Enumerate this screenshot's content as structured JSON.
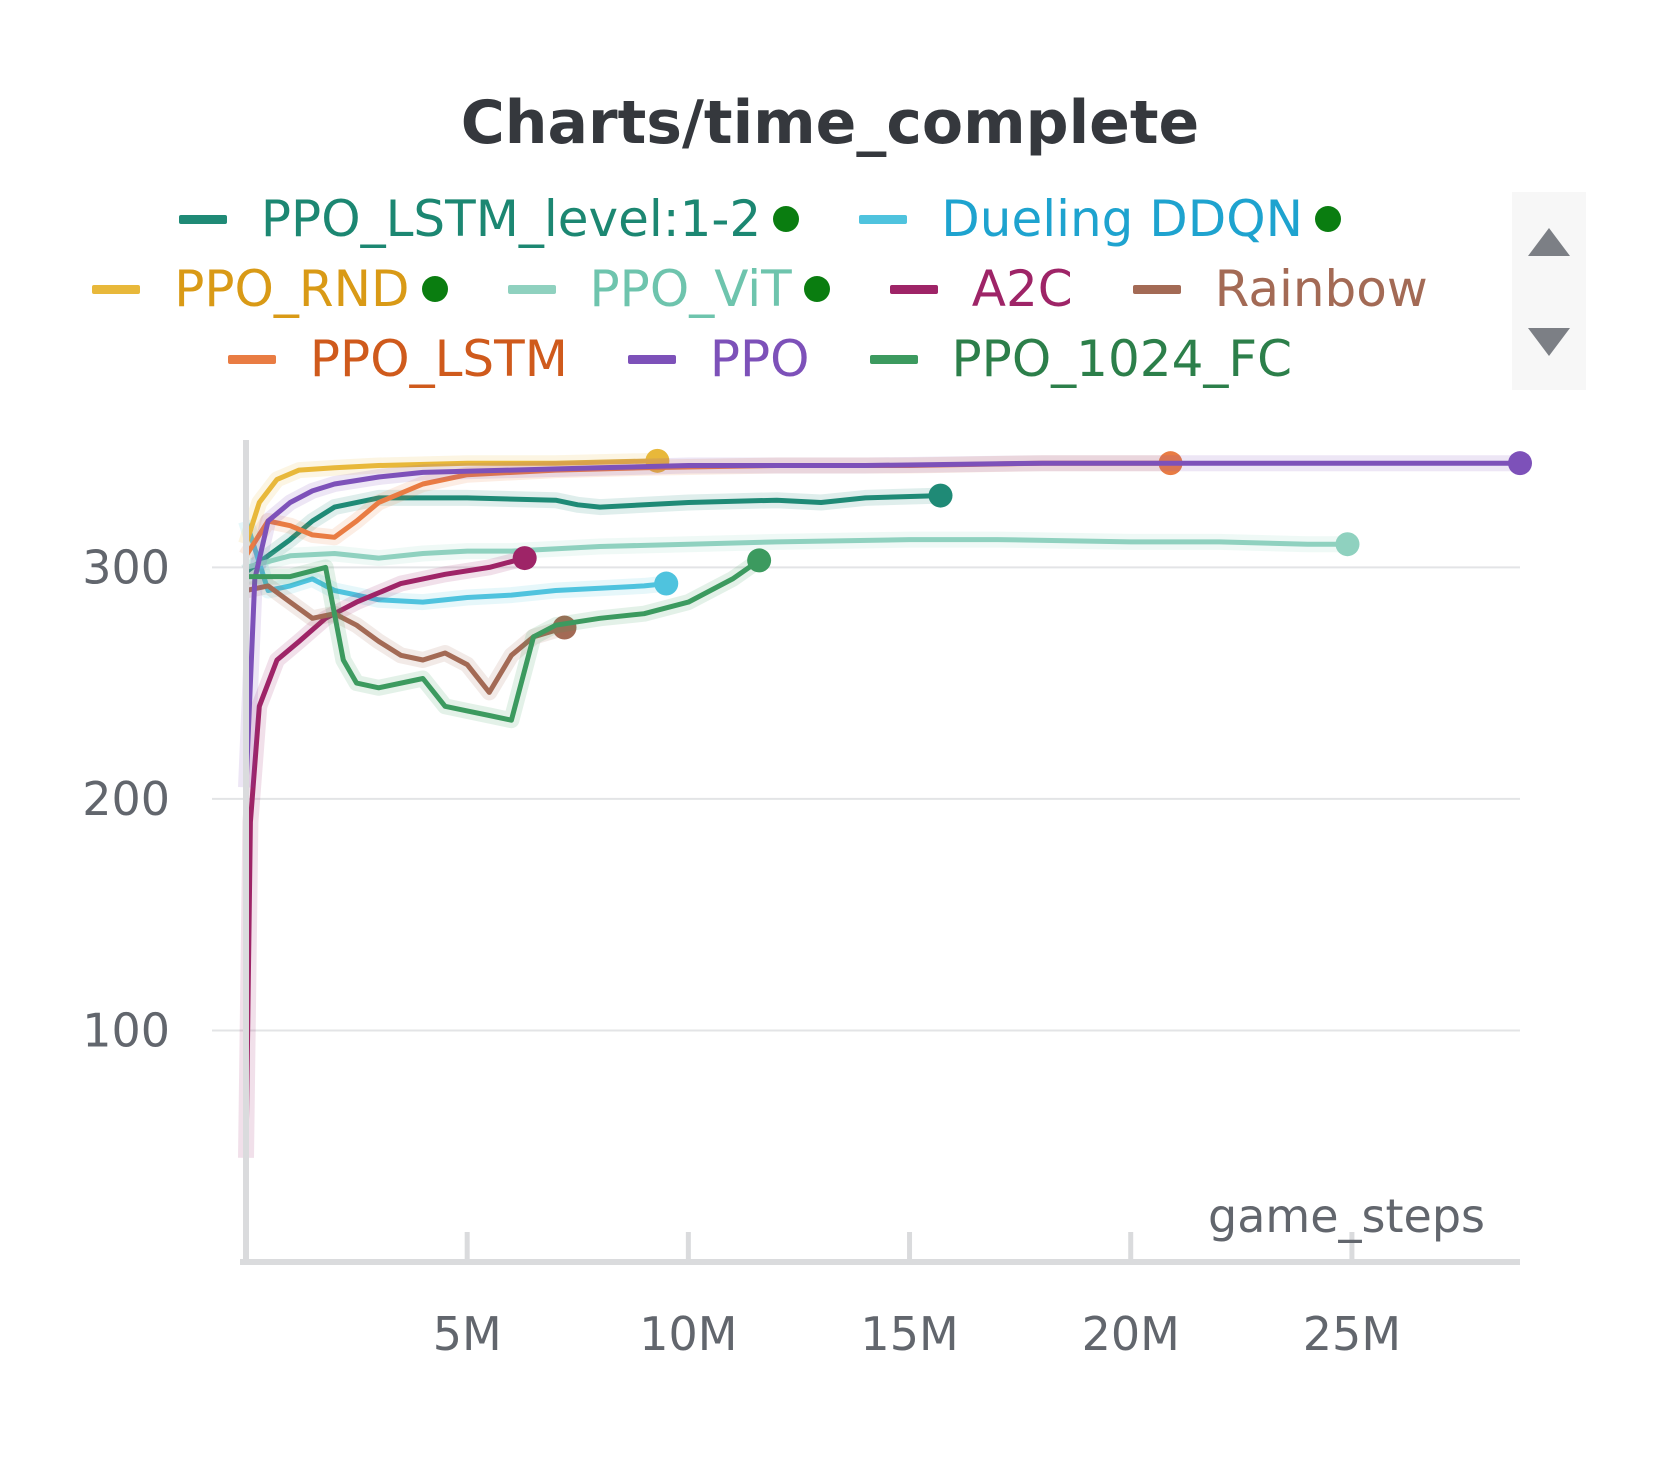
{
  "chart_data": {
    "type": "line",
    "title": "Charts/time_complete",
    "xlabel": "game_steps",
    "ylabel": "",
    "xlim": [
      0,
      28800000
    ],
    "ylim": [
      0,
      355
    ],
    "x_ticks": [
      {
        "value": 5000000,
        "label": "5M"
      },
      {
        "value": 10000000,
        "label": "10M"
      },
      {
        "value": 15000000,
        "label": "15M"
      },
      {
        "value": 20000000,
        "label": "20M"
      },
      {
        "value": 25000000,
        "label": "25M"
      }
    ],
    "y_ticks": [
      {
        "value": 100,
        "label": "100"
      },
      {
        "value": 200,
        "label": "200"
      },
      {
        "value": 300,
        "label": "300"
      }
    ],
    "grid": "horizontal",
    "legend_position": "top",
    "series": [
      {
        "name": "PPO_LSTM_level:1-2",
        "color": "#1f8a76",
        "label_color": "#1c8772",
        "active_dot": true,
        "x": [
          0,
          500000,
          1000000,
          1500000,
          2000000,
          3000000,
          5000000,
          7000000,
          7500000,
          8000000,
          10000000,
          12000000,
          13000000,
          14000000,
          15700000
        ],
        "y": [
          298,
          305,
          312,
          320,
          326,
          330,
          330,
          329,
          327,
          326,
          328,
          329,
          328,
          330,
          331
        ]
      },
      {
        "name": "Dueling DDQN",
        "color": "#4fc3de",
        "label_color": "#1ea3cf",
        "active_dot": true,
        "x": [
          0,
          500000,
          1000000,
          1500000,
          2000000,
          2500000,
          3000000,
          4000000,
          5000000,
          6000000,
          7000000,
          8000000,
          9000000,
          9500000
        ],
        "y": [
          320,
          290,
          292,
          295,
          290,
          288,
          286,
          285,
          287,
          288,
          290,
          291,
          292,
          293
        ]
      },
      {
        "name": "PPO_RND",
        "color": "#e8b83a",
        "label_color": "#d99a16",
        "active_dot": true,
        "x": [
          0,
          300000,
          700000,
          1200000,
          2000000,
          3000000,
          5000000,
          7000000,
          9300000
        ],
        "y": [
          310,
          328,
          338,
          342,
          343,
          344,
          345,
          345,
          346
        ]
      },
      {
        "name": "PPO_ViT",
        "color": "#8fd1bf",
        "label_color": "#6ec4ad",
        "active_dot": true,
        "x": [
          0,
          1000000,
          2000000,
          3000000,
          4000000,
          5000000,
          6000000,
          8000000,
          10000000,
          12000000,
          15000000,
          17000000,
          20000000,
          22000000,
          24000000,
          24900000
        ],
        "y": [
          300,
          305,
          306,
          304,
          306,
          307,
          307,
          309,
          310,
          311,
          312,
          312,
          311,
          311,
          310,
          310
        ]
      },
      {
        "name": "A2C",
        "color": "#9e2467",
        "label_color": "#9e2467",
        "active_dot": false,
        "x": [
          0,
          100000,
          300000,
          700000,
          1200000,
          1800000,
          2500000,
          3500000,
          4500000,
          5500000,
          6300000
        ],
        "y": [
          45,
          190,
          240,
          260,
          268,
          278,
          285,
          293,
          297,
          300,
          304
        ]
      },
      {
        "name": "Rainbow",
        "color": "#a36a55",
        "label_color": "#a36a55",
        "active_dot": false,
        "x": [
          0,
          500000,
          1000000,
          1500000,
          2000000,
          2500000,
          3000000,
          3500000,
          4000000,
          4500000,
          5000000,
          5500000,
          6000000,
          6500000,
          7200000
        ],
        "y": [
          290,
          292,
          285,
          278,
          280,
          275,
          268,
          262,
          260,
          263,
          258,
          246,
          262,
          270,
          274
        ]
      },
      {
        "name": "PPO_LSTM",
        "color": "#e97c43",
        "label_color": "#cf5a1c",
        "active_dot": false,
        "x": [
          0,
          500000,
          1000000,
          1500000,
          2000000,
          2500000,
          3000000,
          4000000,
          5000000,
          7000000,
          9000000,
          12000000,
          15000000,
          18000000,
          20900000
        ],
        "y": [
          305,
          320,
          318,
          314,
          313,
          320,
          328,
          336,
          340,
          342,
          343,
          344,
          344,
          345,
          345
        ]
      },
      {
        "name": "PPO",
        "color": "#7d51b9",
        "label_color": "#7d51b9",
        "active_dot": false,
        "x": [
          0,
          200000,
          500000,
          1000000,
          1500000,
          2000000,
          3000000,
          4000000,
          6000000,
          8000000,
          10000000,
          14000000,
          18000000,
          22000000,
          26000000,
          28800000
        ],
        "y": [
          205,
          295,
          320,
          328,
          333,
          336,
          339,
          341,
          342,
          343,
          344,
          344,
          345,
          345,
          345,
          345
        ]
      },
      {
        "name": "PPO_1024_FC",
        "color": "#3c9a5f",
        "label_color": "#2c7f4a",
        "active_dot": false,
        "x": [
          0,
          1000000,
          1800000,
          2200000,
          2500000,
          3000000,
          4000000,
          4500000,
          5000000,
          5500000,
          6000000,
          6500000,
          7000000,
          8000000,
          9000000,
          10000000,
          11000000,
          11600000
        ],
        "y": [
          296,
          296,
          300,
          260,
          250,
          248,
          252,
          240,
          238,
          236,
          234,
          270,
          275,
          278,
          280,
          285,
          295,
          303
        ]
      }
    ]
  }
}
